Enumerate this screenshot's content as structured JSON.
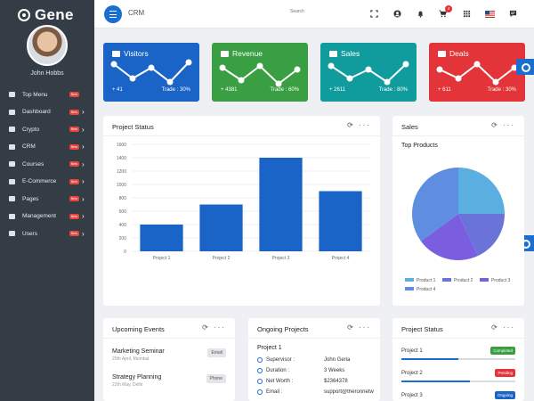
{
  "app": {
    "name": "Gene",
    "user_name": "John Hobbs"
  },
  "sidebar": {
    "items": [
      {
        "label": "Top Menu",
        "badge": "New",
        "chevron": ""
      },
      {
        "label": "Dashboard",
        "badge": "New",
        "chevron": "›"
      },
      {
        "label": "Crypto",
        "badge": "New",
        "chevron": "›"
      },
      {
        "label": "CRM",
        "badge": "New",
        "chevron": "›"
      },
      {
        "label": "Courses",
        "badge": "New",
        "chevron": "›"
      },
      {
        "label": "E-Commerce",
        "badge": "New",
        "chevron": "›"
      },
      {
        "label": "Pages",
        "badge": "New",
        "chevron": "›"
      },
      {
        "label": "Management",
        "badge": "New",
        "chevron": "›"
      },
      {
        "label": "Users",
        "badge": "New",
        "chevron": "›"
      }
    ]
  },
  "topbar": {
    "breadcrumb": "CRM",
    "search_placeholder": "Search",
    "cart_count": "4"
  },
  "stats": [
    {
      "title": "Visitors",
      "left": "+ 41",
      "right": "Trade : 30%",
      "color": "#1a63c7"
    },
    {
      "title": "Revenue",
      "left": "+ 4381",
      "right": "Trade : 60%",
      "color": "#3a9f42"
    },
    {
      "title": "Sales",
      "left": "+ 2611",
      "right": "Trade : 80%",
      "color": "#109c9c"
    },
    {
      "title": "Deals",
      "left": "+ 611",
      "right": "Trade : 30%",
      "color": "#e3343a"
    }
  ],
  "project_status_chart": {
    "title": "Project Status",
    "tools": "⟳ ···",
    "chart_data": {
      "type": "bar",
      "categories": [
        "Project 1",
        "Project 2",
        "Project 3",
        "Project 4"
      ],
      "values": [
        400,
        700,
        1400,
        900
      ],
      "ylim": [
        0,
        1600
      ],
      "yticks": [
        0,
        200,
        400,
        600,
        800,
        1000,
        1200,
        1400,
        1600
      ],
      "grid": true,
      "color": "#1a63c7"
    }
  },
  "sales": {
    "title": "Sales",
    "subtitle": "Top Products",
    "tools": "⟳ ···",
    "chart_data": {
      "type": "pie",
      "labels": [
        "Product 1",
        "Product 2",
        "Product 3",
        "Product 4"
      ],
      "values": [
        25,
        18,
        22,
        35
      ],
      "colors": [
        "#5aaee0",
        "#6a73d8",
        "#7b5ee0",
        "#5f8ee0"
      ]
    }
  },
  "events": {
    "title": "Upcoming Events",
    "tools": "⟳ ···",
    "items": [
      {
        "name": "Marketing Seminar",
        "date": "20th April, Mumbai",
        "tag": "Email"
      },
      {
        "name": "Strategy Planning",
        "date": "22th May, Delhi",
        "tag": "Phone"
      }
    ]
  },
  "ongoing": {
    "title": "Ongoing Projects",
    "tools": "⟳ ···",
    "project": "Project 1",
    "rows": [
      {
        "k": "Supervisor :",
        "v": "John Geria"
      },
      {
        "k": "Duration :",
        "v": "3 Weeks"
      },
      {
        "k": "Net Worth :",
        "v": "$2364378"
      },
      {
        "k": "Email :",
        "v": "support@theronnetw"
      }
    ]
  },
  "project_status_list": {
    "title": "Project Status",
    "tools": "⟳ ···",
    "items": [
      {
        "name": "Project 1",
        "status": "Completed",
        "color": "#3a9f42",
        "progress": 0.5
      },
      {
        "name": "Project 2",
        "status": "Pending",
        "color": "#e3343a",
        "progress": 0.6
      },
      {
        "name": "Project 3",
        "status": "Ongoing",
        "color": "#1a63c7",
        "progress": 0.45
      }
    ]
  }
}
